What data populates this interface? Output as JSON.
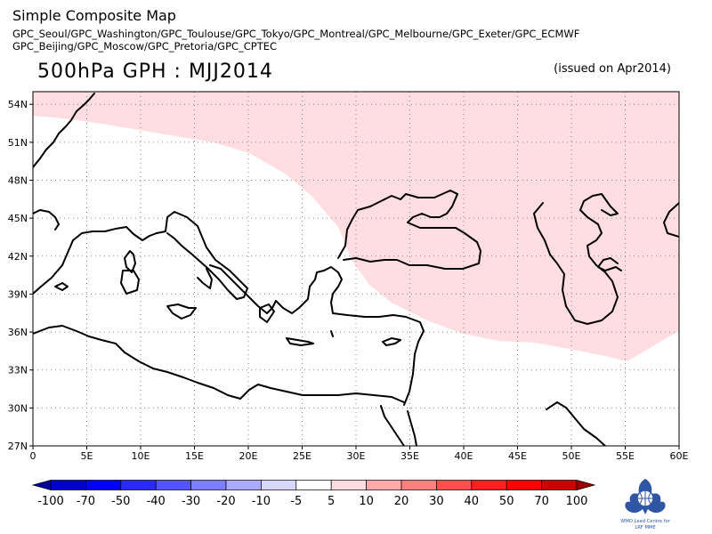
{
  "header": {
    "title": "Simple Composite Map",
    "subtitle_line1": "GPC_Seoul/GPC_Washington/GPC_Toulouse/GPC_Tokyo/GPC_Montreal/GPC_Melbourne/GPC_Exeter/GPC_ECMWF",
    "subtitle_line2": "GPC_Beijing/GPC_Moscow/GPC_Pretoria/GPC_CPTEC",
    "map_title": "500hPa GPH : MJJ2014",
    "issued": "(issued on Apr2014)"
  },
  "map": {
    "lon_range": [
      0,
      60
    ],
    "lat_range": [
      27,
      55
    ],
    "lon_ticks": [
      "0",
      "5E",
      "10E",
      "15E",
      "20E",
      "25E",
      "30E",
      "35E",
      "40E",
      "45E",
      "50E",
      "55E",
      "60E"
    ],
    "lat_ticks": [
      "27N",
      "30N",
      "33N",
      "36N",
      "39N",
      "42N",
      "45N",
      "48N",
      "51N",
      "54N"
    ],
    "grid": "dotted",
    "anomaly_region": {
      "category": "5 to 10",
      "color": "#ffdde0"
    }
  },
  "colorbar": {
    "labels": [
      "-100",
      "-70",
      "-50",
      "-40",
      "-30",
      "-20",
      "-10",
      "-5",
      "5",
      "10",
      "20",
      "30",
      "40",
      "50",
      "70",
      "100"
    ],
    "colors": [
      "#0000a0",
      "#0000cc",
      "#0000ff",
      "#2a2aff",
      "#5555ff",
      "#7d7dff",
      "#aaaaff",
      "#d8d8ff",
      "#ffffff",
      "#ffdde0",
      "#ffaaaa",
      "#ff8080",
      "#ff5050",
      "#ff2020",
      "#ff0000",
      "#cc0000",
      "#a00000"
    ]
  },
  "logo": {
    "line1": "WMO Lead Centre for",
    "line2": "LRF MME",
    "icon": "wmo-emblem-icon"
  }
}
